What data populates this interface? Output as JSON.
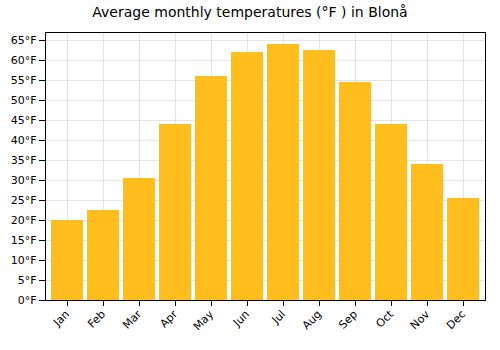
{
  "chart_data": {
    "type": "bar",
    "title": "Average monthly temperatures (°F ) in Blonå",
    "categories": [
      "Jan",
      "Feb",
      "Mar",
      "Apr",
      "May",
      "Jun",
      "Jul",
      "Aug",
      "Sep",
      "Oct",
      "Nov",
      "Dec"
    ],
    "values": [
      20,
      22.5,
      30.5,
      44,
      56,
      62,
      64,
      62.5,
      54.5,
      44,
      34,
      25.5
    ],
    "color": "#FFBE1E",
    "ylim": [
      0,
      67
    ],
    "yticks": [
      {
        "value": 0,
        "label": "0°F"
      },
      {
        "value": 5,
        "label": "5°F"
      },
      {
        "value": 10,
        "label": "10°F"
      },
      {
        "value": 15,
        "label": "15°F"
      },
      {
        "value": 20,
        "label": "20°F"
      },
      {
        "value": 25,
        "label": "25°F"
      },
      {
        "value": 30,
        "label": "30°F"
      },
      {
        "value": 35,
        "label": "35°F"
      },
      {
        "value": 40,
        "label": "40°F"
      },
      {
        "value": 45,
        "label": "45°F"
      },
      {
        "value": 50,
        "label": "50°F"
      },
      {
        "value": 55,
        "label": "55°F"
      },
      {
        "value": 60,
        "label": "60°F"
      },
      {
        "value": 65,
        "label": "65°F"
      }
    ],
    "grid": true
  }
}
